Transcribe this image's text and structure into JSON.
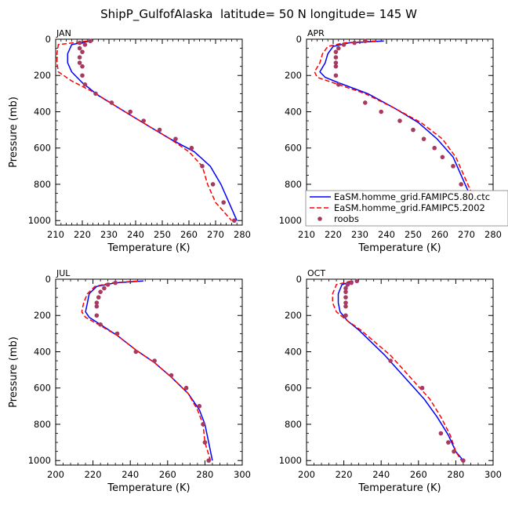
{
  "figure": {
    "title": "ShipP_GulfofAlaska  latitude= 50 N longitude= 145 W"
  },
  "legend": {
    "entries": [
      {
        "label": "EaSM.homme_grid.FAMIPC5.80.ctc",
        "color": "#0000ff",
        "style": "solid"
      },
      {
        "label": "EaSM.homme_grid.FAMIPC5.2002",
        "color": "#ff0000",
        "style": "dashed"
      },
      {
        "label": "roobs",
        "color": "#a63a5f",
        "style": "dots"
      }
    ]
  },
  "colors": {
    "model_ctc": "#0000ff",
    "model_2002": "#ff0000",
    "obs": "#a63a5f"
  },
  "chart_data": [
    {
      "type": "line",
      "panel": "JAN",
      "xlabel": "Temperature (K)",
      "ylabel": "Pressure (mb)",
      "xlim": [
        210,
        280
      ],
      "ylim": [
        1025,
        0
      ],
      "xticks": [
        210,
        220,
        230,
        240,
        250,
        260,
        270,
        280
      ],
      "yticks": [
        0,
        200,
        400,
        600,
        800,
        1000
      ],
      "series": [
        {
          "name": "EaSM.homme_grid.FAMIPC5.80.ctc",
          "style": "line",
          "points": [
            [
              223,
              10
            ],
            [
              216,
              30
            ],
            [
              214.5,
              80
            ],
            [
              214.5,
              130
            ],
            [
              216,
              180
            ],
            [
              220,
              240
            ],
            [
              226,
              310
            ],
            [
              236,
              400
            ],
            [
              245,
              480
            ],
            [
              253,
              550
            ],
            [
              262,
              620
            ],
            [
              268,
              700
            ],
            [
              272,
              800
            ],
            [
              275,
              900
            ],
            [
              278,
              1000
            ]
          ]
        },
        {
          "name": "EaSM.homme_grid.FAMIPC5.2002",
          "style": "dashed",
          "points": [
            [
              222,
              10
            ],
            [
              211,
              30
            ],
            [
              210.5,
              80
            ],
            [
              210.5,
              130
            ],
            [
              211,
              180
            ],
            [
              216,
              230
            ],
            [
              224,
              290
            ],
            [
              236,
              400
            ],
            [
              245,
              480
            ],
            [
              253,
              550
            ],
            [
              260,
              620
            ],
            [
              265,
              700
            ],
            [
              267,
              800
            ],
            [
              270,
              900
            ],
            [
              276,
              1000
            ]
          ]
        },
        {
          "name": "roobs",
          "style": "dots",
          "points": [
            [
              223,
              10
            ],
            [
              219,
              20
            ],
            [
              221,
              30
            ],
            [
              219,
              50
            ],
            [
              220,
              70
            ],
            [
              219,
              100
            ],
            [
              219,
              130
            ],
            [
              220,
              150
            ],
            [
              220,
              200
            ],
            [
              221,
              250
            ],
            [
              225,
              300
            ],
            [
              231,
              350
            ],
            [
              238,
              400
            ],
            [
              243,
              450
            ],
            [
              249,
              500
            ],
            [
              255,
              550
            ],
            [
              261,
              600
            ],
            [
              265,
              700
            ],
            [
              269,
              800
            ],
            [
              273,
              900
            ],
            [
              277,
              1000
            ]
          ]
        }
      ]
    },
    {
      "type": "line",
      "panel": "APR",
      "xlabel": "Temperature (K)",
      "ylabel": "",
      "xlim": [
        210,
        280
      ],
      "ylim": [
        1025,
        0
      ],
      "xticks": [
        210,
        220,
        230,
        240,
        250,
        260,
        270,
        280
      ],
      "yticks": [
        0,
        200,
        400,
        600,
        800,
        1000
      ],
      "series": [
        {
          "name": "EaSM.homme_grid.FAMIPC5.80.ctc",
          "style": "line",
          "points": [
            [
              239,
              10
            ],
            [
              226,
              20
            ],
            [
              220,
              40
            ],
            [
              218,
              80
            ],
            [
              217,
              130
            ],
            [
              215,
              180
            ],
            [
              217,
              210
            ],
            [
              222,
              240
            ],
            [
              233,
              300
            ],
            [
              243,
              380
            ],
            [
              252,
              460
            ],
            [
              259,
              550
            ],
            [
              265,
              650
            ],
            [
              268,
              750
            ],
            [
              271,
              850
            ],
            [
              273,
              950
            ],
            [
              276,
              1000
            ]
          ]
        },
        {
          "name": "EaSM.homme_grid.FAMIPC5.2002",
          "style": "dashed",
          "points": [
            [
              236,
              10
            ],
            [
              224,
              20
            ],
            [
              218,
              40
            ],
            [
              216,
              80
            ],
            [
              215,
              130
            ],
            [
              213,
              180
            ],
            [
              214,
              210
            ],
            [
              220,
              240
            ],
            [
              232,
              300
            ],
            [
              243,
              380
            ],
            [
              253,
              460
            ],
            [
              261,
              550
            ],
            [
              266,
              650
            ],
            [
              269,
              750
            ],
            [
              272,
              850
            ],
            [
              274,
              950
            ],
            [
              277,
              1000
            ]
          ]
        },
        {
          "name": "roobs",
          "style": "dots",
          "points": [
            [
              232,
              10
            ],
            [
              228,
              20
            ],
            [
              224,
              30
            ],
            [
              222,
              50
            ],
            [
              221,
              70
            ],
            [
              221,
              100
            ],
            [
              221,
              130
            ],
            [
              221,
              150
            ],
            [
              221,
              200
            ],
            [
              222,
              250
            ],
            [
              232,
              350
            ],
            [
              238,
              400
            ],
            [
              245,
              450
            ],
            [
              250,
              500
            ],
            [
              254,
              550
            ],
            [
              258,
              600
            ],
            [
              261,
              650
            ],
            [
              265,
              700
            ],
            [
              268,
              800
            ],
            [
              272,
              900
            ],
            [
              277,
              1000
            ]
          ]
        }
      ]
    },
    {
      "type": "line",
      "panel": "JUL",
      "xlabel": "Temperature (K)",
      "ylabel": "Pressure (mb)",
      "xlim": [
        200,
        300
      ],
      "ylim": [
        1025,
        0
      ],
      "xticks": [
        200,
        220,
        240,
        260,
        280,
        300
      ],
      "yticks": [
        0,
        200,
        400,
        600,
        800,
        1000
      ],
      "series": [
        {
          "name": "EaSM.homme_grid.FAMIPC5.80.ctc",
          "style": "line",
          "points": [
            [
              247,
              10
            ],
            [
              232,
              20
            ],
            [
              222,
              40
            ],
            [
              218,
              80
            ],
            [
              217,
              130
            ],
            [
              216,
              180
            ],
            [
              218,
              210
            ],
            [
              224,
              250
            ],
            [
              233,
              310
            ],
            [
              243,
              390
            ],
            [
              253,
              460
            ],
            [
              262,
              540
            ],
            [
              271,
              630
            ],
            [
              277,
              720
            ],
            [
              280,
              800
            ],
            [
              282,
              900
            ],
            [
              284,
              1000
            ]
          ]
        },
        {
          "name": "EaSM.homme_grid.FAMIPC5.2002",
          "style": "dashed",
          "points": [
            [
              244,
              10
            ],
            [
              230,
              20
            ],
            [
              221,
              40
            ],
            [
              217,
              80
            ],
            [
              215,
              130
            ],
            [
              214,
              180
            ],
            [
              216,
              210
            ],
            [
              223,
              250
            ],
            [
              233,
              310
            ],
            [
              243,
              390
            ],
            [
              253,
              460
            ],
            [
              262,
              540
            ],
            [
              271,
              630
            ],
            [
              276,
              720
            ],
            [
              279,
              800
            ],
            [
              280,
              900
            ],
            [
              283,
              1000
            ]
          ]
        },
        {
          "name": "roobs",
          "style": "dots",
          "points": [
            [
              232,
              20
            ],
            [
              228,
              30
            ],
            [
              226,
              50
            ],
            [
              224,
              70
            ],
            [
              223,
              100
            ],
            [
              222,
              130
            ],
            [
              222,
              150
            ],
            [
              222,
              200
            ],
            [
              224,
              250
            ],
            [
              233,
              300
            ],
            [
              243,
              400
            ],
            [
              253,
              450
            ],
            [
              262,
              530
            ],
            [
              270,
              600
            ],
            [
              277,
              700
            ],
            [
              279,
              800
            ],
            [
              280,
              900
            ],
            [
              282,
              1000
            ]
          ]
        }
      ]
    },
    {
      "type": "line",
      "panel": "OCT",
      "xlabel": "Temperature (K)",
      "ylabel": "",
      "xlim": [
        200,
        300
      ],
      "ylim": [
        1025,
        0
      ],
      "xticks": [
        200,
        220,
        240,
        260,
        280,
        300
      ],
      "yticks": [
        0,
        200,
        400,
        600,
        800,
        1000
      ],
      "series": [
        {
          "name": "EaSM.homme_grid.FAMIPC5.80.ctc",
          "style": "line",
          "points": [
            [
              225,
              10
            ],
            [
              219,
              30
            ],
            [
              217,
              80
            ],
            [
              217,
              130
            ],
            [
              218,
              180
            ],
            [
              222,
              230
            ],
            [
              228,
              280
            ],
            [
              235,
              350
            ],
            [
              242,
              420
            ],
            [
              249,
              500
            ],
            [
              256,
              580
            ],
            [
              263,
              660
            ],
            [
              270,
              760
            ],
            [
              276,
              860
            ],
            [
              280,
              950
            ],
            [
              284,
              1000
            ]
          ]
        },
        {
          "name": "EaSM.homme_grid.FAMIPC5.2002",
          "style": "dashed",
          "points": [
            [
              224,
              10
            ],
            [
              216,
              30
            ],
            [
              214,
              80
            ],
            [
              214,
              130
            ],
            [
              216,
              180
            ],
            [
              222,
              230
            ],
            [
              229,
              280
            ],
            [
              237,
              350
            ],
            [
              245,
              420
            ],
            [
              252,
              500
            ],
            [
              259,
              580
            ],
            [
              266,
              660
            ],
            [
              272,
              760
            ],
            [
              277,
              860
            ],
            [
              280,
              950
            ],
            [
              283,
              1000
            ]
          ]
        },
        {
          "name": "roobs",
          "style": "dots",
          "points": [
            [
              227,
              10
            ],
            [
              224,
              20
            ],
            [
              222,
              30
            ],
            [
              221,
              50
            ],
            [
              221,
              70
            ],
            [
              221,
              100
            ],
            [
              221,
              130
            ],
            [
              221,
              150
            ],
            [
              221,
              200
            ],
            [
              245,
              450
            ],
            [
              262,
              600
            ],
            [
              272,
              850
            ],
            [
              276,
              900
            ],
            [
              279,
              950
            ],
            [
              284,
              1000
            ]
          ]
        }
      ]
    }
  ]
}
